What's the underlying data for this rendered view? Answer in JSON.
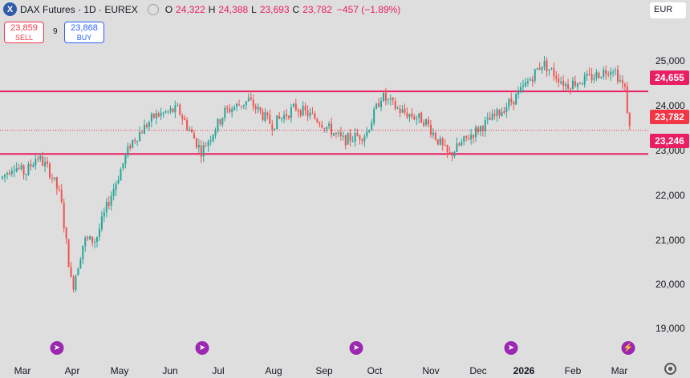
{
  "legend": {
    "symbol_badge": "X",
    "title": "DAX Futures · 1D · EUREX",
    "open_label": "O",
    "open": "24,322",
    "high_label": "H",
    "high": "24,388",
    "low_label": "L",
    "low": "23,693",
    "close_label": "C",
    "close": "23,782",
    "change": "−457 (−1.89%)"
  },
  "trade": {
    "sell_price": "23,859",
    "sell_label": "SELL",
    "spread": "9",
    "buy_price": "23,868",
    "buy_label": "BUY"
  },
  "currency": "EUR",
  "price_axis": [
    "25,000",
    "24,000",
    "23,000",
    "22,000",
    "21,000",
    "20,000",
    "19,000"
  ],
  "tags": {
    "resistance": "24,655",
    "last": "23,782",
    "support": "23,246"
  },
  "months": [
    {
      "label": "Mar",
      "x": 28
    },
    {
      "label": "Apr",
      "x": 90
    },
    {
      "label": "May",
      "x": 149
    },
    {
      "label": "Jun",
      "x": 212
    },
    {
      "label": "Jul",
      "x": 272
    },
    {
      "label": "Aug",
      "x": 341
    },
    {
      "label": "Sep",
      "x": 404
    },
    {
      "label": "Oct",
      "x": 467
    },
    {
      "label": "Nov",
      "x": 537
    },
    {
      "label": "Dec",
      "x": 596
    },
    {
      "label": "2026",
      "x": 653
    },
    {
      "label": "Feb",
      "x": 714
    },
    {
      "label": "Mar",
      "x": 772
    }
  ],
  "events": [
    {
      "x": 71
    },
    {
      "x": 252
    },
    {
      "x": 444
    },
    {
      "x": 637
    },
    {
      "x": 783
    }
  ],
  "colors": {
    "up": "#26a69a",
    "down": "#ef5350",
    "level_line": "#e91e63",
    "last_line": "#f23645",
    "background": "#dedede"
  },
  "chart_data": {
    "type": "candlestick",
    "title": "DAX Futures · 1D · EUREX",
    "y_range": [
      18800,
      25900
    ],
    "levels": [
      24655,
      23246
    ],
    "last_price": 23782,
    "x_range": [
      "2025-02-24",
      "2026-03-05"
    ],
    "monthly_path": [
      {
        "x": "2025-02-24",
        "y": 22700
      },
      {
        "x": "2025-03-03",
        "y": 23000
      },
      {
        "x": "2025-03-10",
        "y": 22800
      },
      {
        "x": "2025-03-17",
        "y": 23200
      },
      {
        "x": "2025-03-24",
        "y": 22900
      },
      {
        "x": "2025-03-31",
        "y": 22300
      },
      {
        "x": "2025-04-07",
        "y": 20200
      },
      {
        "x": "2025-04-14",
        "y": 21300
      },
      {
        "x": "2025-04-21",
        "y": 21300
      },
      {
        "x": "2025-04-28",
        "y": 22100
      },
      {
        "x": "2025-05-05",
        "y": 22800
      },
      {
        "x": "2025-05-12",
        "y": 23500
      },
      {
        "x": "2025-05-26",
        "y": 24100
      },
      {
        "x": "2025-06-09",
        "y": 24250
      },
      {
        "x": "2025-06-23",
        "y": 23300
      },
      {
        "x": "2025-07-07",
        "y": 24200
      },
      {
        "x": "2025-07-21",
        "y": 24450
      },
      {
        "x": "2025-08-04",
        "y": 23900
      },
      {
        "x": "2025-08-18",
        "y": 24300
      },
      {
        "x": "2025-09-01",
        "y": 24000
      },
      {
        "x": "2025-09-15",
        "y": 23550
      },
      {
        "x": "2025-09-29",
        "y": 23700
      },
      {
        "x": "2025-10-08",
        "y": 24550
      },
      {
        "x": "2025-10-20",
        "y": 24200
      },
      {
        "x": "2025-11-03",
        "y": 24000
      },
      {
        "x": "2025-11-17",
        "y": 23200
      },
      {
        "x": "2025-12-01",
        "y": 23700
      },
      {
        "x": "2025-12-15",
        "y": 24100
      },
      {
        "x": "2025-12-29",
        "y": 24600
      },
      {
        "x": "2026-01-12",
        "y": 25300
      },
      {
        "x": "2026-01-26",
        "y": 24800
      },
      {
        "x": "2026-02-09",
        "y": 24950
      },
      {
        "x": "2026-02-23",
        "y": 25200
      },
      {
        "x": "2026-03-02",
        "y": 24700
      },
      {
        "x": "2026-03-05",
        "y": 23782
      }
    ]
  }
}
